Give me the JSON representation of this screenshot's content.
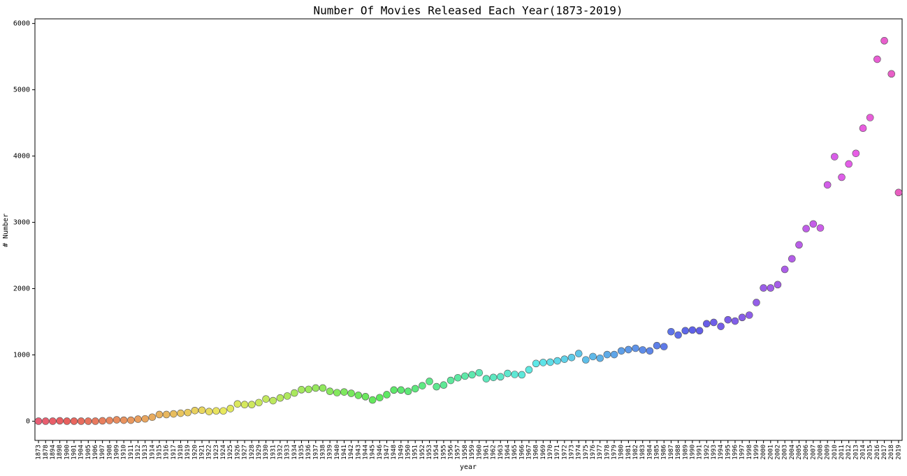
{
  "chart_data": {
    "type": "strip",
    "title": "Number Of Movies Released Each Year(1873-2019)",
    "x_label": "year",
    "y_label": "# Number",
    "categories": [
      "1873",
      "1878",
      "1894",
      "1898",
      "1900",
      "1901",
      "1904",
      "1905",
      "1906",
      "1907",
      "1908",
      "1909",
      "1910",
      "1911",
      "1912",
      "1913",
      "1914",
      "1915",
      "1916",
      "1917",
      "1918",
      "1919",
      "1920",
      "1921",
      "1922",
      "1923",
      "1924",
      "1925",
      "1926",
      "1927",
      "1928",
      "1929",
      "1930",
      "1931",
      "1932",
      "1933",
      "1934",
      "1935",
      "1936",
      "1937",
      "1938",
      "1939",
      "1940",
      "1941",
      "1942",
      "1943",
      "1944",
      "1945",
      "1946",
      "1947",
      "1948",
      "1949",
      "1950",
      "1951",
      "1952",
      "1953",
      "1954",
      "1955",
      "1956",
      "1957",
      "1958",
      "1959",
      "1960",
      "1961",
      "1962",
      "1963",
      "1964",
      "1965",
      "1966",
      "1967",
      "1968",
      "1969",
      "1970",
      "1971",
      "1972",
      "1973",
      "1974",
      "1975",
      "1976",
      "1977",
      "1978",
      "1979",
      "1980",
      "1981",
      "1982",
      "1983",
      "1984",
      "1985",
      "1986",
      "1987",
      "1988",
      "1989",
      "1990",
      "1991",
      "1992",
      "1993",
      "1994",
      "1995",
      "1996",
      "1997",
      "1998",
      "1999",
      "2000",
      "2001",
      "2002",
      "2003",
      "2004",
      "2005",
      "2006",
      "2007",
      "2008",
      "2009",
      "2010",
      "2011",
      "2012",
      "2013",
      "2014",
      "2015",
      "2016",
      "2017",
      "2018",
      "2019"
    ],
    "values": [
      0,
      0,
      0,
      5,
      0,
      0,
      0,
      0,
      0,
      5,
      10,
      20,
      15,
      15,
      30,
      35,
      60,
      100,
      100,
      110,
      120,
      130,
      160,
      165,
      145,
      155,
      155,
      190,
      260,
      250,
      250,
      280,
      335,
      310,
      350,
      380,
      425,
      475,
      480,
      500,
      500,
      450,
      430,
      440,
      420,
      390,
      370,
      320,
      355,
      400,
      470,
      470,
      450,
      490,
      535,
      600,
      520,
      545,
      615,
      655,
      680,
      700,
      730,
      640,
      660,
      670,
      720,
      705,
      700,
      775,
      870,
      885,
      890,
      910,
      935,
      960,
      1020,
      925,
      975,
      950,
      1005,
      1005,
      1060,
      1080,
      1100,
      1075,
      1060,
      1140,
      1125,
      1350,
      1300,
      1365,
      1375,
      1365,
      1470,
      1490,
      1430,
      1530,
      1510,
      1565,
      1600,
      1790,
      2010,
      2010,
      2060,
      2290,
      2450,
      2660,
      2905,
      2975,
      2915,
      3565,
      3990,
      3680,
      3880,
      4040,
      4420,
      4580,
      5460,
      5740,
      5240,
      3450
    ],
    "palette": "husl",
    "ylim": [
      -290,
      6070
    ],
    "yticks": [
      0,
      1000,
      2000,
      3000,
      4000,
      5000,
      6000
    ],
    "grid": false
  }
}
